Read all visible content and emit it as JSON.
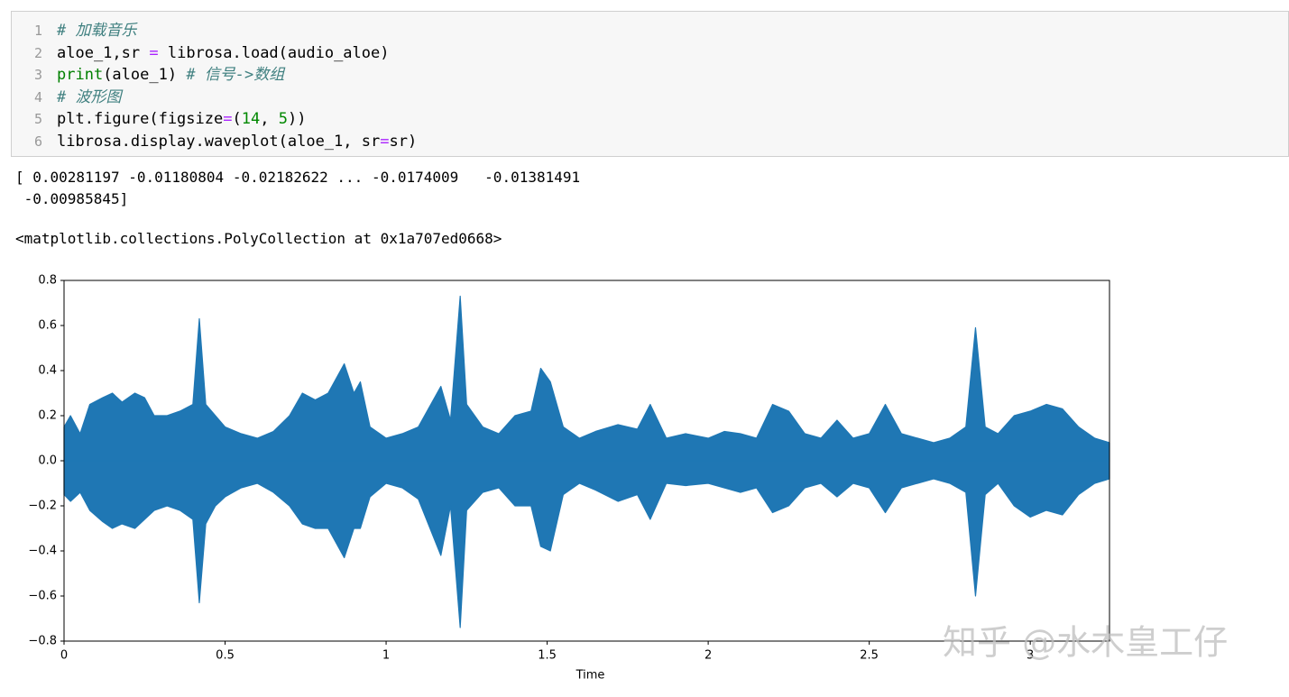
{
  "code": {
    "lines": [
      {
        "number": 1,
        "tokens": [
          {
            "text": "# 加载音乐",
            "style": "comment"
          }
        ]
      },
      {
        "number": 2,
        "tokens": [
          {
            "text": "aloe_1,sr ",
            "style": "plain"
          },
          {
            "text": "=",
            "style": "operator"
          },
          {
            "text": " librosa.load(audio_aloe)",
            "style": "plain"
          }
        ]
      },
      {
        "number": 3,
        "tokens": [
          {
            "text": "print",
            "style": "builtin"
          },
          {
            "text": "(aloe_1) ",
            "style": "plain"
          },
          {
            "text": "# 信号->数组",
            "style": "comment"
          }
        ]
      },
      {
        "number": 4,
        "tokens": [
          {
            "text": "# 波形图",
            "style": "comment"
          }
        ]
      },
      {
        "number": 5,
        "tokens": [
          {
            "text": "plt.figure(figsize",
            "style": "plain"
          },
          {
            "text": "=",
            "style": "operator"
          },
          {
            "text": "(",
            "style": "plain"
          },
          {
            "text": "14",
            "style": "number"
          },
          {
            "text": ", ",
            "style": "plain"
          },
          {
            "text": "5",
            "style": "number"
          },
          {
            "text": "))",
            "style": "plain"
          }
        ]
      },
      {
        "number": 6,
        "tokens": [
          {
            "text": "librosa.display.waveplot(aloe_1, sr",
            "style": "plain"
          },
          {
            "text": "=",
            "style": "operator"
          },
          {
            "text": "sr)",
            "style": "plain"
          }
        ]
      }
    ]
  },
  "output": {
    "lines": [
      "[ 0.00281197 -0.01180804 -0.02182622 ... -0.0174009   -0.01381491",
      " -0.00985845]"
    ],
    "repr": "<matplotlib.collections.PolyCollection at 0x1a707ed0668>"
  },
  "chart_data": {
    "type": "area",
    "xlabel": "Time",
    "x": [
      0,
      0.02,
      0.05,
      0.08,
      0.12,
      0.15,
      0.18,
      0.22,
      0.25,
      0.28,
      0.32,
      0.36,
      0.4,
      0.42,
      0.44,
      0.47,
      0.5,
      0.55,
      0.6,
      0.65,
      0.7,
      0.74,
      0.78,
      0.82,
      0.87,
      0.9,
      0.92,
      0.95,
      1.0,
      1.05,
      1.1,
      1.17,
      1.2,
      1.23,
      1.25,
      1.3,
      1.35,
      1.4,
      1.45,
      1.48,
      1.51,
      1.55,
      1.6,
      1.65,
      1.72,
      1.78,
      1.82,
      1.87,
      1.93,
      2.0,
      2.05,
      2.1,
      2.15,
      2.2,
      2.25,
      2.3,
      2.35,
      2.4,
      2.45,
      2.5,
      2.55,
      2.6,
      2.65,
      2.7,
      2.75,
      2.8,
      2.83,
      2.86,
      2.9,
      2.95,
      3.0,
      3.05,
      3.1,
      3.15,
      3.2,
      3.246
    ],
    "series": [
      {
        "color": "#1f77b4",
        "values": [
          0.15,
          0.2,
          0.12,
          0.25,
          0.28,
          0.3,
          0.26,
          0.3,
          0.28,
          0.2,
          0.2,
          0.22,
          0.25,
          0.63,
          0.25,
          0.2,
          0.15,
          0.12,
          0.1,
          0.13,
          0.2,
          0.3,
          0.27,
          0.3,
          0.43,
          0.3,
          0.35,
          0.15,
          0.1,
          0.12,
          0.15,
          0.33,
          0.18,
          0.73,
          0.25,
          0.15,
          0.12,
          0.2,
          0.22,
          0.41,
          0.35,
          0.15,
          0.1,
          0.13,
          0.16,
          0.14,
          0.25,
          0.1,
          0.12,
          0.1,
          0.13,
          0.12,
          0.1,
          0.25,
          0.22,
          0.12,
          0.1,
          0.18,
          0.1,
          0.12,
          0.25,
          0.12,
          0.1,
          0.08,
          0.1,
          0.15,
          0.59,
          0.15,
          0.12,
          0.2,
          0.22,
          0.25,
          0.23,
          0.15,
          0.1,
          0.08
        ]
      },
      {
        "color": "#1f77b4",
        "values": [
          -0.15,
          -0.18,
          -0.14,
          -0.22,
          -0.27,
          -0.3,
          -0.28,
          -0.3,
          -0.26,
          -0.22,
          -0.2,
          -0.22,
          -0.26,
          -0.63,
          -0.28,
          -0.2,
          -0.16,
          -0.12,
          -0.1,
          -0.14,
          -0.2,
          -0.28,
          -0.3,
          -0.3,
          -0.43,
          -0.3,
          -0.3,
          -0.16,
          -0.1,
          -0.12,
          -0.17,
          -0.42,
          -0.2,
          -0.74,
          -0.22,
          -0.14,
          -0.12,
          -0.2,
          -0.2,
          -0.38,
          -0.4,
          -0.15,
          -0.1,
          -0.13,
          -0.18,
          -0.15,
          -0.26,
          -0.1,
          -0.11,
          -0.1,
          -0.12,
          -0.14,
          -0.12,
          -0.23,
          -0.2,
          -0.12,
          -0.1,
          -0.16,
          -0.1,
          -0.12,
          -0.23,
          -0.12,
          -0.1,
          -0.08,
          -0.1,
          -0.14,
          -0.6,
          -0.15,
          -0.1,
          -0.2,
          -0.25,
          -0.22,
          -0.24,
          -0.15,
          -0.1,
          -0.08
        ]
      }
    ],
    "xlim": [
      0,
      3.246
    ],
    "xticks": [
      0,
      0.5,
      1,
      1.5,
      2,
      2.5,
      3
    ],
    "ylim": [
      -0.8,
      0.8
    ],
    "yticks": [
      {
        "value": -0.8,
        "label": "−0.8"
      },
      {
        "value": -0.6,
        "label": "−0.6"
      },
      {
        "value": -0.4,
        "label": "−0.4"
      },
      {
        "value": -0.2,
        "label": "−0.2"
      },
      {
        "value": 0,
        "label": "0.0"
      },
      0.2,
      0.4,
      0.6,
      0.8
    ],
    "grid": false
  },
  "watermark": "知乎 @水木皇工仔"
}
